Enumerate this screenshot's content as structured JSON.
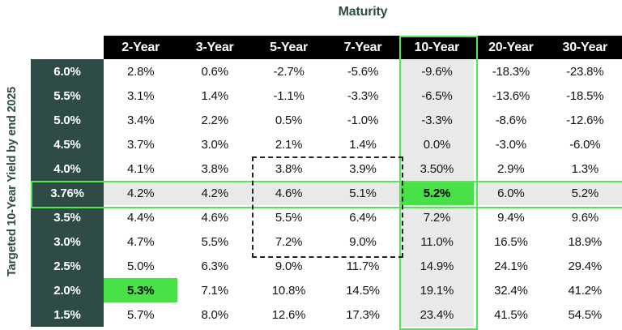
{
  "title": "Maturity",
  "y_axis_label": "Targeted 10-Year Yield by end 2025",
  "chart_data": {
    "type": "table",
    "title": "Maturity",
    "ylabel": "Targeted 10-Year Yield by end 2025",
    "columns": [
      "2-Year",
      "3-Year",
      "5-Year",
      "7-Year",
      "10-Year",
      "20-Year",
      "30-Year"
    ],
    "rows": [
      {
        "label": "6.0%",
        "values": [
          "2.8%",
          "0.6%",
          "-2.7%",
          "-5.6%",
          "-9.6%",
          "-18.3%",
          "-23.8%"
        ]
      },
      {
        "label": "5.5%",
        "values": [
          "3.1%",
          "1.4%",
          "-1.1%",
          "-3.3%",
          "-6.5%",
          "-13.6%",
          "-18.5%"
        ]
      },
      {
        "label": "5.0%",
        "values": [
          "3.4%",
          "2.2%",
          "0.5%",
          "-1.0%",
          "-3.3%",
          "-8.6%",
          "-12.6%"
        ]
      },
      {
        "label": "4.5%",
        "values": [
          "3.7%",
          "3.0%",
          "2.1%",
          "1.4%",
          "0.0%",
          "-3.0%",
          "-6.0%"
        ]
      },
      {
        "label": "4.0%",
        "values": [
          "4.1%",
          "3.8%",
          "3.8%",
          "3.9%",
          "3.50%",
          "2.9%",
          "1.3%"
        ]
      },
      {
        "label": "3.76%",
        "values": [
          "4.2%",
          "4.2%",
          "4.6%",
          "5.1%",
          "5.2%",
          "6.0%",
          "5.2%"
        ]
      },
      {
        "label": "3.5%",
        "values": [
          "4.4%",
          "4.6%",
          "5.5%",
          "6.4%",
          "7.2%",
          "9.4%",
          "9.6%"
        ]
      },
      {
        "label": "3.0%",
        "values": [
          "4.7%",
          "5.5%",
          "7.2%",
          "9.0%",
          "11.0%",
          "16.5%",
          "18.9%"
        ]
      },
      {
        "label": "2.5%",
        "values": [
          "5.0%",
          "6.3%",
          "9.0%",
          "11.7%",
          "14.9%",
          "24.1%",
          "29.4%"
        ]
      },
      {
        "label": "2.0%",
        "values": [
          "5.3%",
          "7.1%",
          "10.8%",
          "14.5%",
          "19.1%",
          "32.4%",
          "41.2%"
        ]
      },
      {
        "label": "1.5%",
        "values": [
          "5.7%",
          "8.0%",
          "12.6%",
          "17.3%",
          "23.4%",
          "41.5%",
          "54.5%"
        ]
      }
    ],
    "highlights": {
      "column": "10-Year",
      "row": "3.76%",
      "cells": [
        {
          "row": "3.76%",
          "column": "10-Year",
          "value": "5.2%"
        },
        {
          "row": "2.0%",
          "column": "2-Year",
          "value": "5.3%"
        }
      ],
      "dashed_region": {
        "columns": [
          "5-Year",
          "7-Year"
        ],
        "row_start": "4.0%",
        "row_end": "3.0%"
      }
    },
    "colors": {
      "header_bg": "#000000",
      "header_text": "#ffffff",
      "row_label_bg": "#2e4b47",
      "row_label_text": "#ffffff",
      "highlight_green_fill": "#48e148",
      "highlight_green_border": "#54e654",
      "shaded_gray": "#e9e9e9",
      "title_color": "#2e4b47",
      "dashed_border": "#222222"
    },
    "legend_position": "none",
    "grid": false
  }
}
